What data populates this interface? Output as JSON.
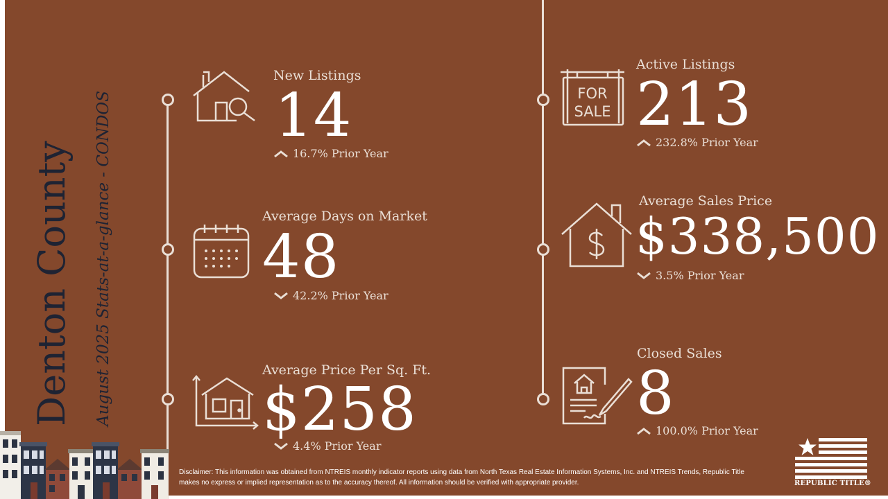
{
  "header": {
    "county": "Denton County",
    "subtitle": "August 2025 Stats-at-a-glance - CONDOS"
  },
  "icons": {
    "for_sale_line1": "FOR",
    "for_sale_line2": "SALE"
  },
  "stats": {
    "new_listings": {
      "label": "New Listings",
      "value": "14",
      "change": "16.7% Prior Year",
      "direction": "up",
      "icon": "house-search-icon"
    },
    "active_listings": {
      "label": "Active Listings",
      "value": "213",
      "change": "232.8% Prior Year",
      "direction": "up",
      "icon": "for-sale-sign-icon"
    },
    "avg_days": {
      "label": "Average Days on Market",
      "value": "48",
      "change": "42.2% Prior Year",
      "direction": "down",
      "icon": "calendar-icon"
    },
    "avg_sales_price": {
      "label": "Average Sales Price",
      "value": "$338,500",
      "change": "3.5% Prior Year",
      "direction": "down",
      "icon": "house-dollar-icon"
    },
    "price_sqft": {
      "label": "Average Price Per Sq. Ft.",
      "value": "$258",
      "change": "4.4% Prior Year",
      "direction": "down",
      "icon": "house-dimensions-icon"
    },
    "closed_sales": {
      "label": "Closed Sales",
      "value": "8",
      "change": "100.0% Prior Year",
      "direction": "up",
      "icon": "contract-sign-icon"
    }
  },
  "footer": {
    "disclaimer": "Disclaimer: This information was obtained from NTREIS monthly indicator reports using data from North Texas Real Estate Information Systems, Inc. and NTREIS Trends, Republic Title makes no express or implied representation as to the accuracy thereof. All information should be verified with appropriate provider.",
    "logo_text": "REPUBLIC TITLE®"
  },
  "colors": {
    "background": "#84482c",
    "text_light": "#eadfd6",
    "title_dark": "#1e2333"
  }
}
